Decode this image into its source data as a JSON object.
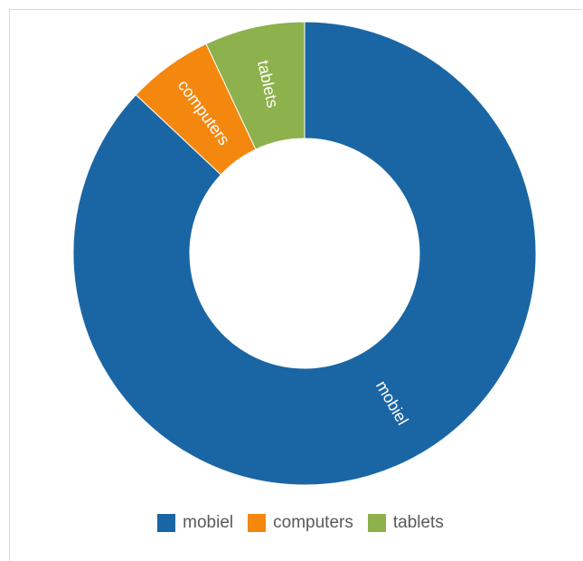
{
  "chart_data": {
    "type": "pie",
    "subtype": "donut",
    "title": "",
    "categories": [
      "mobiel",
      "computers",
      "tablets"
    ],
    "values": [
      87,
      6,
      7
    ],
    "unit": "share",
    "colors": [
      "#1a66a4",
      "#f4880f",
      "#8db14c"
    ],
    "legend_position": "bottom",
    "legend": [
      {
        "label": "mobiel",
        "color": "#1a66a4"
      },
      {
        "label": "computers",
        "color": "#f4880f"
      },
      {
        "label": "tablets",
        "color": "#8db14c"
      }
    ],
    "data_labels": [
      "mobiel",
      "computers",
      "tablets"
    ]
  }
}
